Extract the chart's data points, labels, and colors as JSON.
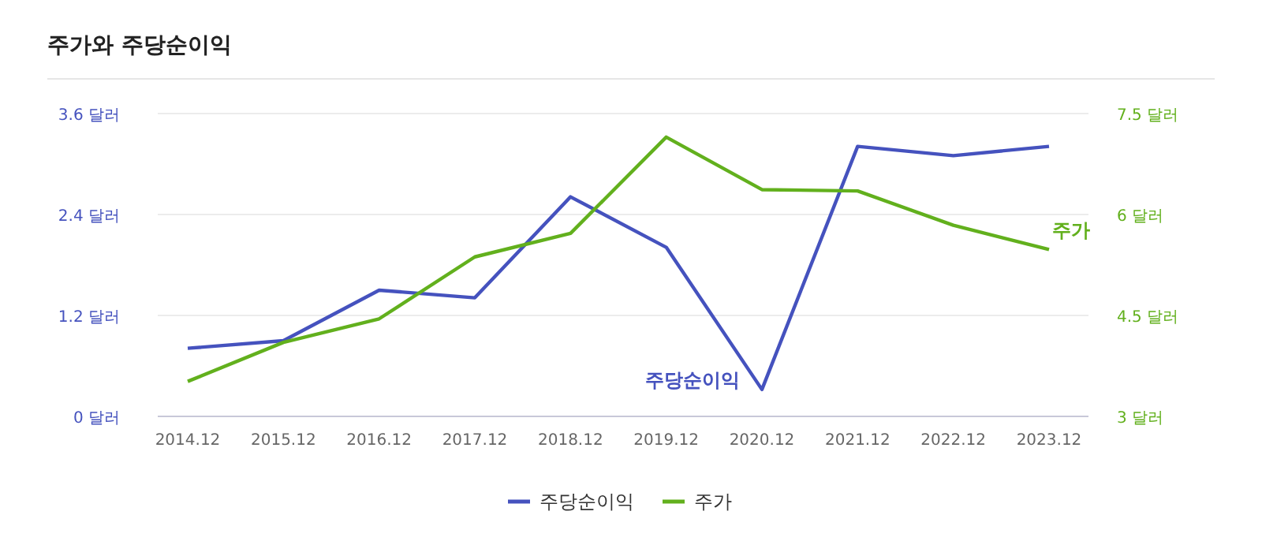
{
  "chart_data": {
    "type": "line",
    "title": "주가와 주당순이익",
    "categories": [
      "2014.12",
      "2015.12",
      "2016.12",
      "2017.12",
      "2018.12",
      "2019.12",
      "2020.12",
      "2021.12",
      "2022.12",
      "2023.12"
    ],
    "series": [
      {
        "name": "주당순이익",
        "color": "#4552be",
        "values": [
          0.81,
          0.9,
          1.5,
          1.41,
          2.61,
          2.01,
          0.32,
          3.21,
          3.1,
          3.21
        ]
      },
      {
        "name": "주가",
        "color": "#62b01d",
        "axis": "y2",
        "values": [
          3.52,
          4.1,
          4.45,
          5.37,
          5.72,
          7.15,
          6.37,
          6.35,
          5.84,
          5.48
        ]
      }
    ],
    "ylim": [
      0,
      3.6
    ],
    "yticks": [
      {
        "value": 0,
        "label": "0 달러"
      },
      {
        "value": 1.2,
        "label": "1.2 달러"
      },
      {
        "value": 2.4,
        "label": "2.4 달러"
      },
      {
        "value": 3.6,
        "label": "3.6 달러"
      }
    ],
    "y2lim": [
      3,
      7.5
    ],
    "y2ticks": [
      {
        "value": 3,
        "label": "3 달러"
      },
      {
        "value": 4.5,
        "label": "4.5 달러"
      },
      {
        "value": 6,
        "label": "6 달러"
      },
      {
        "value": 7.5,
        "label": "7.5 달러"
      }
    ],
    "grid": "y",
    "legend": "bottom",
    "marker": "none",
    "line_style": "solid"
  }
}
